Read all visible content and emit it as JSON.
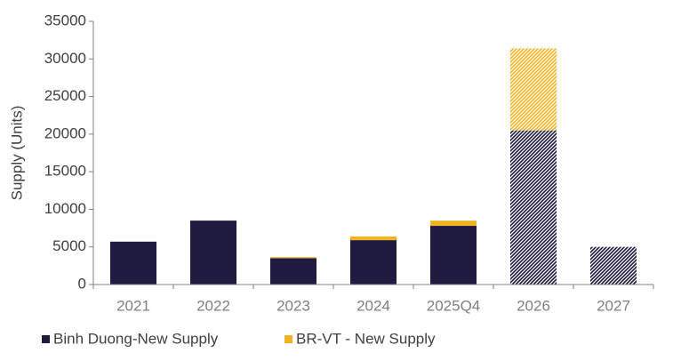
{
  "chart_data": {
    "type": "stacked_bar",
    "y_label": "Supply (Units)",
    "categories": [
      "2021",
      "2022",
      "2023",
      "2024",
      "2025Q4",
      "2026",
      "2027"
    ],
    "hatched": [
      false,
      false,
      false,
      false,
      false,
      true,
      true
    ],
    "series": [
      {
        "name": "Binh Duong-New Supply",
        "color": "#1f1a40",
        "values": [
          5700,
          8500,
          3500,
          5900,
          7800,
          20500,
          5000
        ]
      },
      {
        "name": "BR-VT - New Supply",
        "color": "#f0b323",
        "values": [
          0,
          0,
          150,
          500,
          700,
          10900,
          0
        ]
      }
    ],
    "ylim": [
      0,
      35000
    ],
    "yticks": [
      0,
      5000,
      10000,
      15000,
      20000,
      25000,
      30000,
      35000
    ],
    "legend": "bottom"
  }
}
